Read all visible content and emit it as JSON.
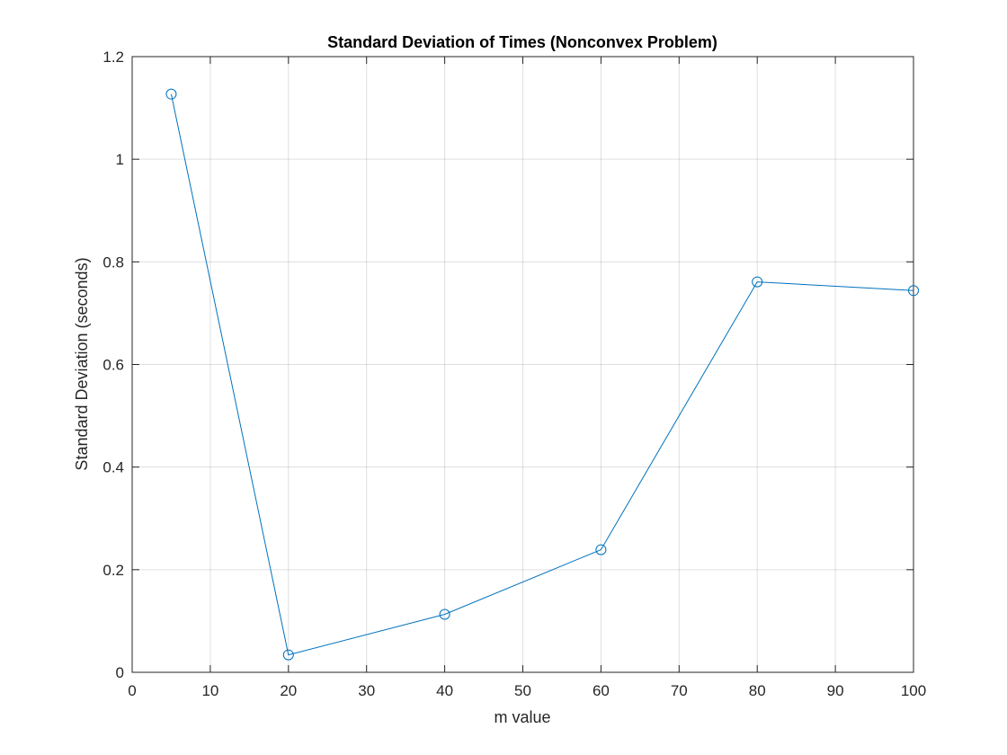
{
  "chart_data": {
    "type": "line",
    "title": "Standard Deviation of Times (Nonconvex Problem)",
    "xlabel": "m value",
    "ylabel": "Standard Deviation (seconds)",
    "xlim": [
      0,
      100
    ],
    "ylim": [
      0,
      1.2
    ],
    "xticks": [
      "0",
      "10",
      "20",
      "30",
      "40",
      "50",
      "60",
      "70",
      "80",
      "90",
      "100"
    ],
    "yticks": [
      "0",
      "0.2",
      "0.4",
      "0.6",
      "0.8",
      "1",
      "1.2"
    ],
    "grid": true,
    "marker": "circle",
    "line_color": "#0072BD",
    "x": [
      5,
      20,
      40,
      60,
      80,
      100
    ],
    "y": [
      1.127,
      0.034,
      0.113,
      0.239,
      0.761,
      0.744
    ]
  }
}
